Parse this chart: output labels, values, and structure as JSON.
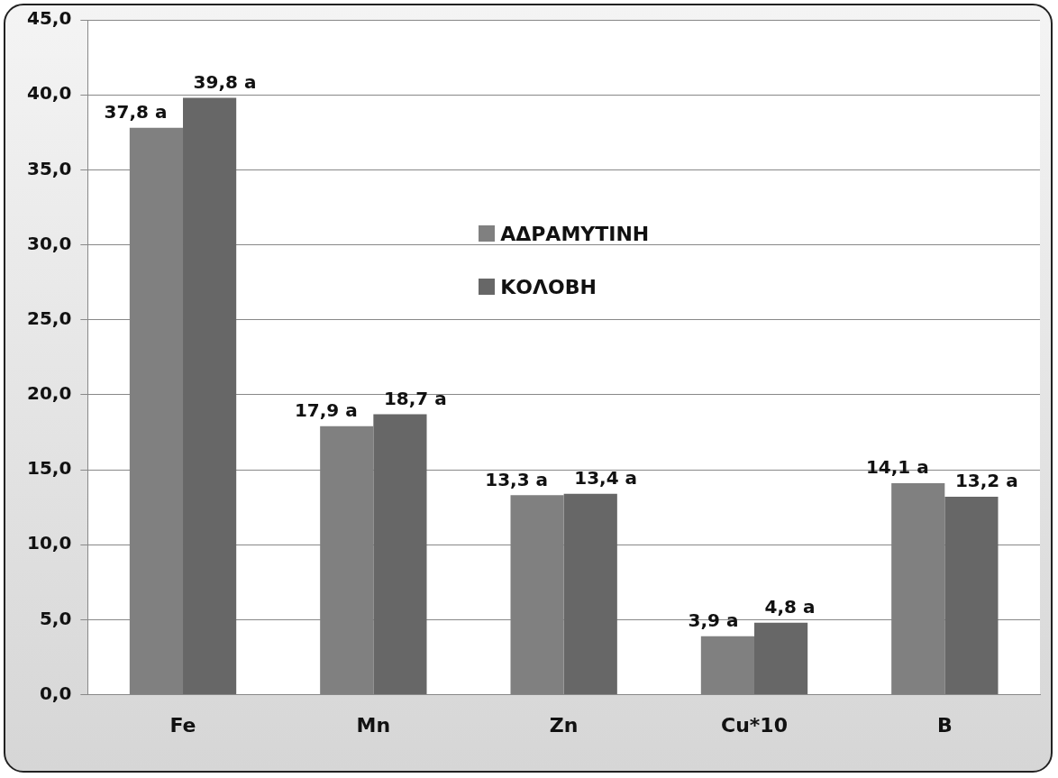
{
  "chart_data": {
    "type": "bar",
    "categories": [
      "Fe",
      "Mn",
      "Zn",
      "Cu*10",
      "B"
    ],
    "series": [
      {
        "name": "ΑΔΡΑΜΥΤΙΝΗ",
        "color": "#808080",
        "values": [
          37.8,
          17.9,
          13.3,
          3.9,
          14.1
        ],
        "value_labels": [
          "37,8 a",
          "17,9 a",
          "13,3 a",
          "3,9 a",
          "14,1 a"
        ]
      },
      {
        "name": "ΚΟΛΟΒΗ",
        "color": "#676767",
        "values": [
          39.8,
          18.7,
          13.4,
          4.8,
          13.2
        ],
        "value_labels": [
          "39,8 a",
          "18,7 a",
          "13,4 a",
          "4,8 a",
          "13,2 a"
        ]
      }
    ],
    "ylim": [
      0,
      45
    ],
    "yticks": [
      {
        "value": 0,
        "label": "0,0"
      },
      {
        "value": 5,
        "label": "5,0"
      },
      {
        "value": 10,
        "label": "10,0"
      },
      {
        "value": 15,
        "label": "15,0"
      },
      {
        "value": 20,
        "label": "20,0"
      },
      {
        "value": 25,
        "label": "25,0"
      },
      {
        "value": 30,
        "label": "30,0"
      },
      {
        "value": 35,
        "label": "35,0"
      },
      {
        "value": 40,
        "label": "40,0"
      },
      {
        "value": 45,
        "label": "45,0"
      }
    ],
    "grid": "y",
    "legend": "center"
  }
}
